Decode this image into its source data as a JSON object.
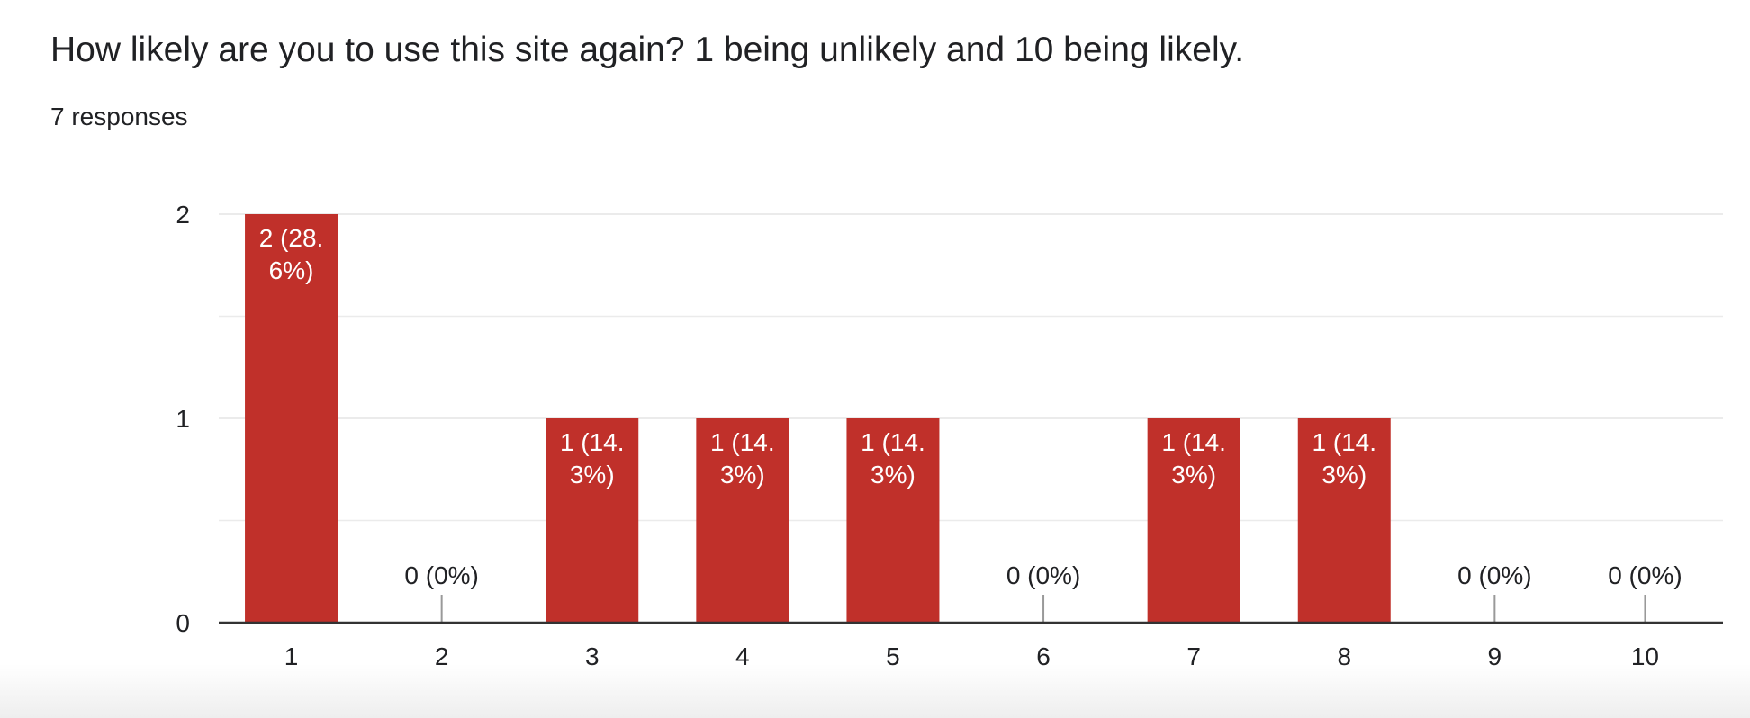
{
  "question": {
    "title": "How likely are you to use this site again? 1 being unlikely and 10 being likely.",
    "response_count": "7 responses"
  },
  "colors": {
    "bar": "#c0302a",
    "grid": "#ebebeb",
    "axis": "#333333",
    "text": "#202124",
    "bar_label": "#ffffff"
  },
  "chart_data": {
    "type": "bar",
    "title": "How likely are you to use this site again? 1 being unlikely and 10 being likely.",
    "xlabel": "",
    "ylabel": "",
    "categories": [
      "1",
      "2",
      "3",
      "4",
      "5",
      "6",
      "7",
      "8",
      "9",
      "10"
    ],
    "values": [
      2,
      0,
      1,
      1,
      1,
      0,
      1,
      1,
      0,
      0
    ],
    "data_labels": [
      "2 (28.6%)",
      "0 (0%)",
      "1 (14.3%)",
      "1 (14.3%)",
      "1 (14.3%)",
      "0 (0%)",
      "1 (14.3%)",
      "1 (14.3%)",
      "0 (0%)",
      "0 (0%)"
    ],
    "y_ticks": [
      "0",
      "1",
      "2"
    ],
    "ylim": [
      0,
      2
    ],
    "grid": true,
    "legend": "none"
  }
}
